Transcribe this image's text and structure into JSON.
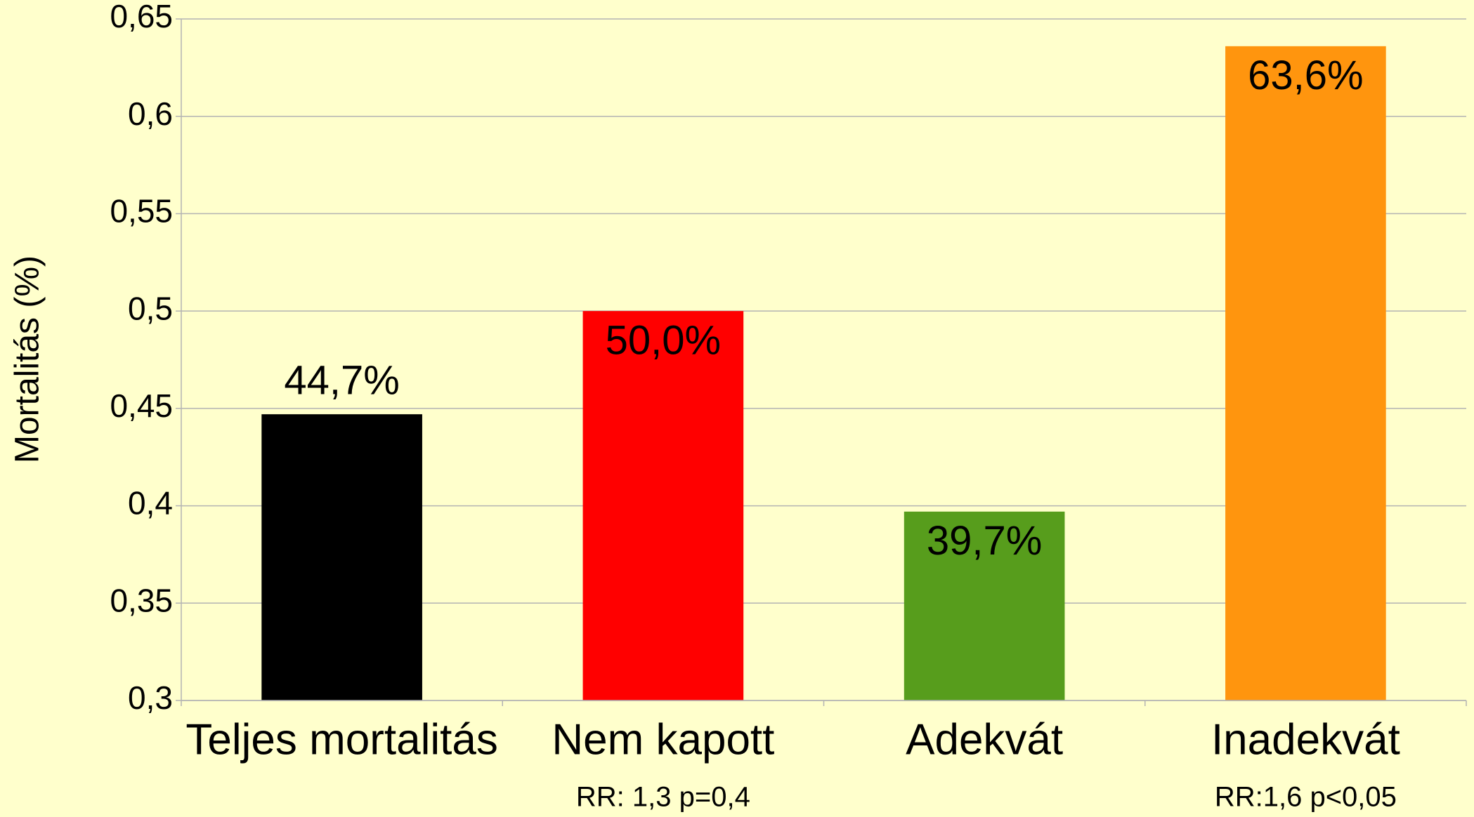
{
  "chart_data": {
    "type": "bar",
    "y_label": "Mortalitás (%)",
    "categories": [
      "Teljes mortalitás",
      "Nem kapott",
      "Adekvát",
      "Inadekvát"
    ],
    "values": [
      0.447,
      0.5,
      0.397,
      0.636
    ],
    "value_labels": [
      "44,7%",
      "50,0%",
      "39,7%",
      "63,6%"
    ],
    "colors": [
      "#000000",
      "#ff0000",
      "#579d1c",
      "#ff950e"
    ],
    "annotations": [
      null,
      "RR: 1,3 p=0,4",
      null,
      "RR:1,6 p<0,05"
    ],
    "ylim": [
      0.3,
      0.65
    ],
    "yticks": [
      {
        "value": 0.3,
        "label": "0,3"
      },
      {
        "value": 0.35,
        "label": "0,35"
      },
      {
        "value": 0.4,
        "label": "0,4"
      },
      {
        "value": 0.45,
        "label": "0,45"
      },
      {
        "value": 0.5,
        "label": "0,5"
      },
      {
        "value": 0.55,
        "label": "0,55"
      },
      {
        "value": 0.6,
        "label": "0,6"
      },
      {
        "value": 0.65,
        "label": "0,65"
      }
    ],
    "grid": true
  }
}
